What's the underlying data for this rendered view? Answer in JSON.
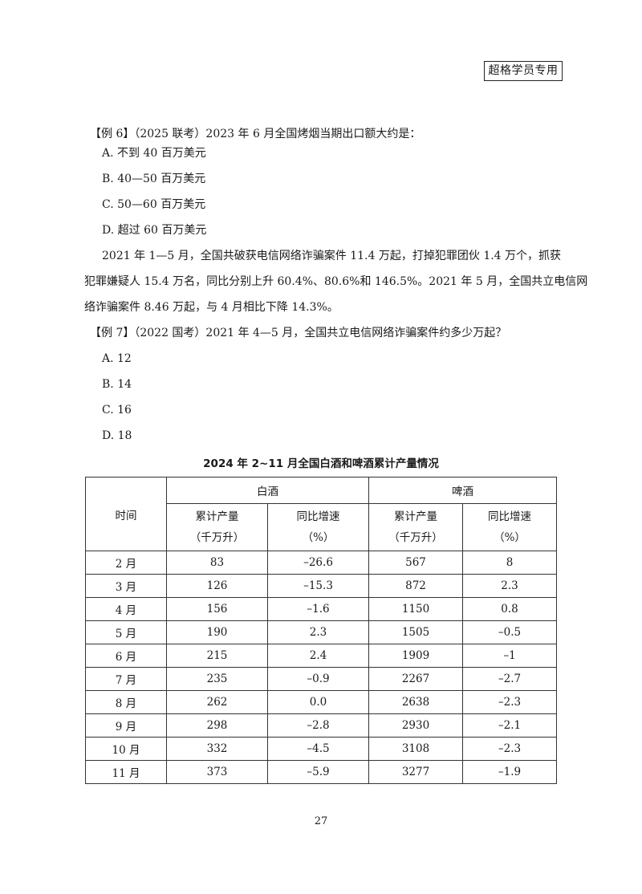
{
  "stamp": "超格学员专用",
  "example6": {
    "question": "【例 6】（2025 联考）2023 年 6 月全国烤烟当期出口额大约是：",
    "options": [
      "A. 不到 40 百万美元",
      "B. 40—50 百万美元",
      "C. 50—60 百万美元",
      "D. 超过 60 百万美元"
    ]
  },
  "passage": [
    "2021 年 1—5 月，全国共破获电信网络诈骗案件 11.4 万起，打掉犯罪团伙 1.4 万个，抓获",
    "犯罪嫌疑人 15.4 万名，同比分别上升 60.4%、80.6%和 146.5%。2021 年 5 月，全国共立电信网",
    "络诈骗案件 8.46 万起，与 4 月相比下降 14.3%。"
  ],
  "example7": {
    "question": "【例 7】（2022 国考）2021 年 4—5 月，全国共立电信网络诈骗案件约多少万起？",
    "options": [
      "A. 12",
      "B. 14",
      "C. 16",
      "D. 18"
    ]
  },
  "table": {
    "title": "2024 年 2~11 月全国白酒和啤酒累计产量情况",
    "header": {
      "time": "时间",
      "group1": "白酒",
      "group2": "啤酒",
      "col_output": "累计产量",
      "col_output_unit": "（千万升）",
      "col_growth": "同比增速",
      "col_growth_unit": "（%）"
    },
    "rows": [
      [
        "2 月",
        "83",
        "–26.6",
        "567",
        "8"
      ],
      [
        "3 月",
        "126",
        "–15.3",
        "872",
        "2.3"
      ],
      [
        "4 月",
        "156",
        "–1.6",
        "1150",
        "0.8"
      ],
      [
        "5 月",
        "190",
        "2.3",
        "1505",
        "–0.5"
      ],
      [
        "6 月",
        "215",
        "2.4",
        "1909",
        "–1"
      ],
      [
        "7 月",
        "235",
        "–0.9",
        "2267",
        "–2.7"
      ],
      [
        "8 月",
        "262",
        "0.0",
        "2638",
        "–2.3"
      ],
      [
        "9 月",
        "298",
        "–2.8",
        "2930",
        "–2.1"
      ],
      [
        "10 月",
        "332",
        "–4.5",
        "3108",
        "–2.3"
      ],
      [
        "11 月",
        "373",
        "–5.9",
        "3277",
        "–1.9"
      ]
    ]
  },
  "page_number": "27"
}
